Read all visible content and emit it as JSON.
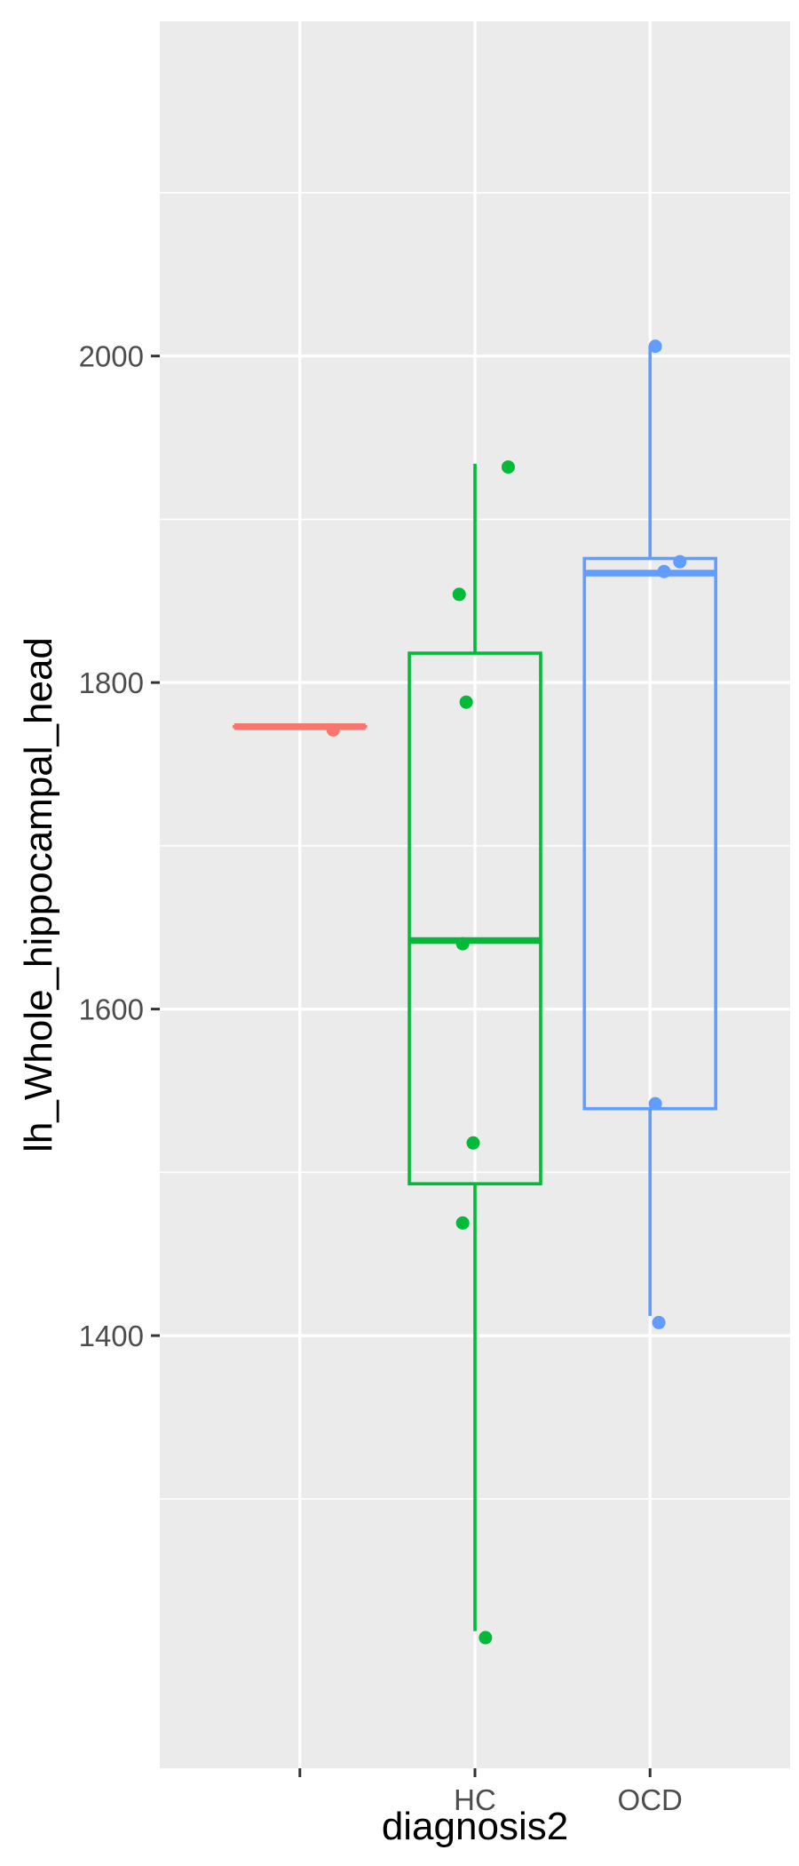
{
  "chart_data": {
    "type": "boxplot",
    "title": "",
    "xlabel": "diagnosis2",
    "ylabel": "lh_Whole_hippocampal_head",
    "categories": [
      "",
      "HC",
      "OCD"
    ],
    "ylim": [
      1135,
      2205
    ],
    "yticks": [
      1400,
      1600,
      1800,
      2000
    ],
    "grid": true,
    "legend": "none",
    "colors": [
      "#F8766D",
      "#00BA38",
      "#619CFF"
    ],
    "boxes": [
      {
        "category": "",
        "lower_whisker": 1773,
        "q1": 1773,
        "median": 1773,
        "q3": 1773,
        "upper_whisker": 1773
      },
      {
        "category": "HC",
        "lower_whisker": 1219,
        "q1": 1493,
        "median": 1642,
        "q3": 1818,
        "upper_whisker": 1934
      },
      {
        "category": "OCD",
        "lower_whisker": 1412,
        "q1": 1539,
        "median": 1867,
        "q3": 1876,
        "upper_whisker": 2006
      }
    ],
    "points": [
      {
        "category": "",
        "jitter": 0.19,
        "y": 1771
      },
      {
        "category": "HC",
        "jitter": 0.19,
        "y": 1932
      },
      {
        "category": "HC",
        "jitter": -0.09,
        "y": 1854
      },
      {
        "category": "HC",
        "jitter": -0.05,
        "y": 1788
      },
      {
        "category": "HC",
        "jitter": -0.07,
        "y": 1640
      },
      {
        "category": "HC",
        "jitter": -0.01,
        "y": 1518
      },
      {
        "category": "HC",
        "jitter": -0.07,
        "y": 1469
      },
      {
        "category": "HC",
        "jitter": 0.06,
        "y": 1215
      },
      {
        "category": "OCD",
        "jitter": 0.03,
        "y": 2006
      },
      {
        "category": "OCD",
        "jitter": 0.17,
        "y": 1874
      },
      {
        "category": "OCD",
        "jitter": 0.08,
        "y": 1868
      },
      {
        "category": "OCD",
        "jitter": 0.03,
        "y": 1542
      },
      {
        "category": "OCD",
        "jitter": 0.05,
        "y": 1408
      }
    ]
  }
}
